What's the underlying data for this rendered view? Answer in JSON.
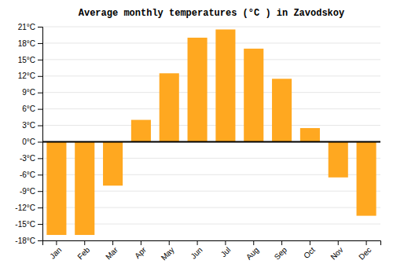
{
  "chart_data": {
    "type": "bar",
    "title": "Average monthly temperatures (°C ) in Zavodskoy",
    "categories": [
      "Jan",
      "Feb",
      "Mar",
      "Apr",
      "May",
      "Jun",
      "Jul",
      "Aug",
      "Sep",
      "Oct",
      "Nov",
      "Dec"
    ],
    "values": [
      -17,
      -17,
      -8,
      4,
      12.5,
      19,
      20.5,
      17,
      11.5,
      2.5,
      -6.5,
      -13.5
    ],
    "color": "#FFA820",
    "ylim": [
      -18,
      21
    ],
    "yticks": [
      {
        "value": -18,
        "label": "-18°C"
      },
      {
        "value": -15,
        "label": "-15°C"
      },
      {
        "value": -12,
        "label": "-12°C"
      },
      {
        "value": -9,
        "label": "-9°C"
      },
      {
        "value": -6,
        "label": "-6°C"
      },
      {
        "value": -3,
        "label": "-3°C"
      },
      {
        "value": 0,
        "label": "0°C"
      },
      {
        "value": 3,
        "label": "3°C"
      },
      {
        "value": 6,
        "label": "6°C"
      },
      {
        "value": 9,
        "label": "9°C"
      },
      {
        "value": 12,
        "label": "12°C"
      },
      {
        "value": 15,
        "label": "15°C"
      },
      {
        "value": 18,
        "label": "18°C"
      },
      {
        "value": 21,
        "label": "21°C"
      }
    ],
    "grid": true
  }
}
